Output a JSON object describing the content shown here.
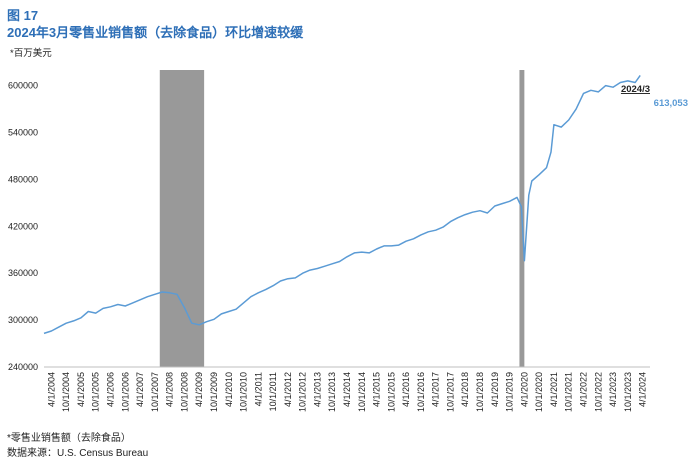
{
  "header": {
    "figure_label": "图 17",
    "title": "2024年3月零售业销售额（去除食品）环比增速较缓",
    "unit": "*百万美元"
  },
  "footer": {
    "note": "*零售业销售额（去除食品）",
    "source": "数据来源：U.S. Census Bureau"
  },
  "annotation": {
    "date": "2024/3",
    "value": "613,053"
  },
  "colors": {
    "line": "#5B9BD5",
    "recession": "#999999",
    "title": "#2E6FB7"
  },
  "chart_data": {
    "type": "line",
    "ylim": [
      240000,
      620000
    ],
    "y_ticks": [
      "240000",
      "300000",
      "360000",
      "420000",
      "480000",
      "540000",
      "600000"
    ],
    "x_tick_labels": [
      "4/1/2004",
      "10/1/2004",
      "4/1/2005",
      "10/1/2005",
      "4/1/2006",
      "10/1/2006",
      "4/1/2007",
      "10/1/2007",
      "4/1/2008",
      "10/1/2008",
      "4/1/2009",
      "10/1/2009",
      "4/1/2010",
      "10/1/2010",
      "4/1/2011",
      "10/1/2011",
      "4/1/2012",
      "10/1/2012",
      "4/1/2013",
      "10/1/2013",
      "4/1/2014",
      "10/1/2014",
      "4/1/2015",
      "10/1/2015",
      "4/1/2016",
      "10/1/2016",
      "4/1/2017",
      "10/1/2017",
      "4/1/2018",
      "10/1/2018",
      "4/1/2019",
      "10/1/2019",
      "4/1/2020",
      "10/1/2020",
      "4/1/2021",
      "10/1/2021",
      "4/1/2022",
      "10/1/2022",
      "4/1/2023",
      "10/1/2023",
      "4/1/2024"
    ],
    "x_start": "2004-01",
    "recessions": [
      {
        "start": "2007-12",
        "end": "2009-06"
      },
      {
        "start": "2020-02",
        "end": "2020-04"
      }
    ],
    "series": [
      {
        "values": [
          [
            2004.0,
            283000
          ],
          [
            2004.25,
            286000
          ],
          [
            2004.5,
            291000
          ],
          [
            2004.75,
            296000
          ],
          [
            2005.0,
            299000
          ],
          [
            2005.25,
            303000
          ],
          [
            2005.5,
            311000
          ],
          [
            2005.75,
            309000
          ],
          [
            2006.0,
            315000
          ],
          [
            2006.25,
            317000
          ],
          [
            2006.5,
            320000
          ],
          [
            2006.75,
            318000
          ],
          [
            2007.0,
            322000
          ],
          [
            2007.25,
            326000
          ],
          [
            2007.5,
            330000
          ],
          [
            2007.75,
            333000
          ],
          [
            2008.0,
            336000
          ],
          [
            2008.25,
            335000
          ],
          [
            2008.5,
            333000
          ],
          [
            2008.75,
            316000
          ],
          [
            2009.0,
            296000
          ],
          [
            2009.25,
            294000
          ],
          [
            2009.5,
            298000
          ],
          [
            2009.75,
            301000
          ],
          [
            2010.0,
            308000
          ],
          [
            2010.25,
            311000
          ],
          [
            2010.5,
            314000
          ],
          [
            2010.75,
            322000
          ],
          [
            2011.0,
            330000
          ],
          [
            2011.25,
            335000
          ],
          [
            2011.5,
            339000
          ],
          [
            2011.75,
            344000
          ],
          [
            2012.0,
            350000
          ],
          [
            2012.25,
            353000
          ],
          [
            2012.5,
            354000
          ],
          [
            2012.75,
            360000
          ],
          [
            2013.0,
            364000
          ],
          [
            2013.25,
            366000
          ],
          [
            2013.5,
            369000
          ],
          [
            2013.75,
            372000
          ],
          [
            2014.0,
            375000
          ],
          [
            2014.25,
            381000
          ],
          [
            2014.5,
            386000
          ],
          [
            2014.75,
            387000
          ],
          [
            2015.0,
            386000
          ],
          [
            2015.25,
            391000
          ],
          [
            2015.5,
            395000
          ],
          [
            2015.75,
            395000
          ],
          [
            2016.0,
            396000
          ],
          [
            2016.25,
            401000
          ],
          [
            2016.5,
            404000
          ],
          [
            2016.75,
            409000
          ],
          [
            2017.0,
            413000
          ],
          [
            2017.25,
            415000
          ],
          [
            2017.5,
            419000
          ],
          [
            2017.75,
            426000
          ],
          [
            2018.0,
            431000
          ],
          [
            2018.25,
            435000
          ],
          [
            2018.5,
            438000
          ],
          [
            2018.75,
            440000
          ],
          [
            2019.0,
            437000
          ],
          [
            2019.25,
            446000
          ],
          [
            2019.5,
            449000
          ],
          [
            2019.75,
            452000
          ],
          [
            2020.0,
            457000
          ],
          [
            2020.15,
            445000
          ],
          [
            2020.25,
            376000
          ],
          [
            2020.4,
            460000
          ],
          [
            2020.5,
            478000
          ],
          [
            2020.75,
            486000
          ],
          [
            2021.0,
            495000
          ],
          [
            2021.15,
            515000
          ],
          [
            2021.25,
            550000
          ],
          [
            2021.5,
            547000
          ],
          [
            2021.75,
            556000
          ],
          [
            2022.0,
            570000
          ],
          [
            2022.25,
            590000
          ],
          [
            2022.5,
            594000
          ],
          [
            2022.75,
            592000
          ],
          [
            2023.0,
            600000
          ],
          [
            2023.25,
            598000
          ],
          [
            2023.5,
            604000
          ],
          [
            2023.75,
            606000
          ],
          [
            2024.0,
            604000
          ],
          [
            2024.17,
            613053
          ]
        ]
      }
    ]
  }
}
